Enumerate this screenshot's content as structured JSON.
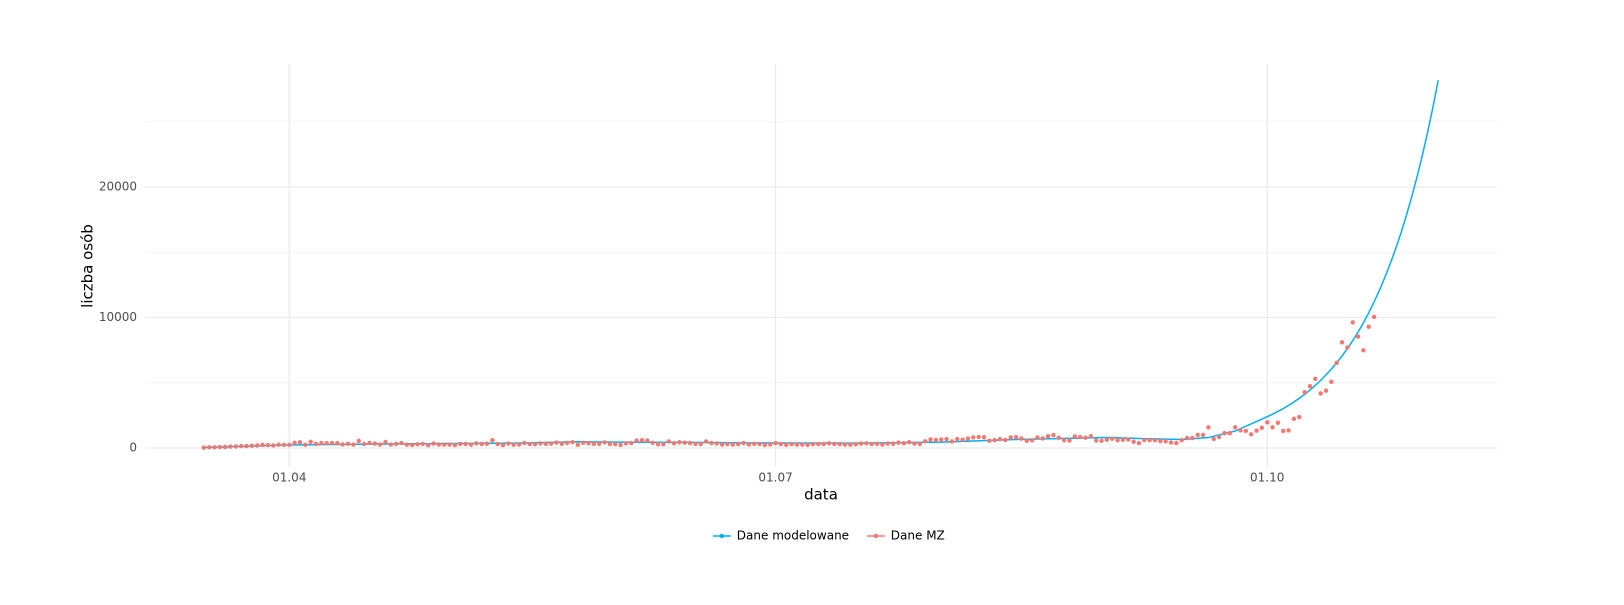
{
  "chart_data": {
    "type": "line",
    "x_label": "data",
    "y_label": "liczba osób",
    "xlim": [
      "05.03",
      "13.11"
    ],
    "xticks": [
      "01.04",
      "01.07",
      "01.10"
    ],
    "ylim": [
      -1456,
      29425
    ],
    "yticks": [
      0,
      10000,
      20000
    ],
    "yminor": [
      5000,
      15000,
      25000
    ],
    "grid": true,
    "legend": "bottom",
    "series": [
      {
        "name": "Dane modelowane",
        "color": "#00B0F6",
        "mode": "line",
        "x": [
          "16.03",
          "01.04",
          "15.04",
          "01.05",
          "15.05",
          "25.05",
          "01.06",
          "15.06",
          "01.07",
          "15.07",
          "01.08",
          "15.08",
          "01.09",
          "08.09",
          "15.09",
          "20.09",
          "25.09",
          "01.10",
          "02.10",
          "03.10",
          "04.10",
          "05.10",
          "06.10",
          "07.10",
          "08.10",
          "09.10",
          "10.10",
          "11.10",
          "12.10",
          "13.10",
          "14.10",
          "15.10",
          "16.10",
          "17.10",
          "18.10",
          "19.10",
          "20.10",
          "21.10",
          "22.10",
          "23.10",
          "24.10",
          "25.10",
          "26.10",
          "27.10",
          "28.10",
          "29.10",
          "30.10",
          "31.10",
          "01.11",
          "02.11"
        ],
        "values": [
          50,
          230,
          300,
          340,
          380,
          480,
          450,
          430,
          380,
          370,
          450,
          650,
          800,
          720,
          650,
          800,
          1300,
          2400,
          2590,
          2800,
          3020,
          3265,
          3525,
          3810,
          4110,
          4440,
          4800,
          5180,
          5600,
          6045,
          6530,
          7050,
          7615,
          8225,
          8880,
          9590,
          10360,
          11190,
          12085,
          13050,
          14100,
          15225,
          16440,
          17760,
          19180,
          20710,
          22370,
          24160,
          26090,
          28180
        ]
      },
      {
        "name": "Dane MZ",
        "color": "#F8766D",
        "mode": "points",
        "x": [
          "16.03",
          "17.03",
          "18.03",
          "19.03",
          "20.03",
          "21.03",
          "22.03",
          "23.03",
          "24.03",
          "25.03",
          "26.03",
          "27.03",
          "28.03",
          "29.03",
          "30.03",
          "31.03",
          "01.04",
          "02.04",
          "03.04",
          "04.04",
          "05.04",
          "06.04",
          "07.04",
          "08.04",
          "09.04",
          "10.04",
          "11.04",
          "12.04",
          "13.04",
          "14.04",
          "15.04",
          "16.04",
          "17.04",
          "18.04",
          "19.04",
          "20.04",
          "21.04",
          "22.04",
          "23.04",
          "24.04",
          "25.04",
          "26.04",
          "27.04",
          "28.04",
          "29.04",
          "30.04",
          "01.05",
          "02.05",
          "03.05",
          "04.05",
          "05.05",
          "06.05",
          "07.05",
          "08.05",
          "09.05",
          "10.05",
          "11.05",
          "12.05",
          "13.05",
          "14.05",
          "15.05",
          "16.05",
          "17.05",
          "18.05",
          "19.05",
          "20.05",
          "21.05",
          "22.05",
          "23.05",
          "24.05",
          "25.05",
          "26.05",
          "27.05",
          "28.05",
          "29.05",
          "30.05",
          "31.05",
          "01.06",
          "02.06",
          "03.06",
          "04.06",
          "05.06",
          "06.06",
          "07.06",
          "08.06",
          "09.06",
          "10.06",
          "11.06",
          "12.06",
          "13.06",
          "14.06",
          "15.06",
          "16.06",
          "17.06",
          "18.06",
          "19.06",
          "20.06",
          "21.06",
          "22.06",
          "23.06",
          "24.06",
          "25.06",
          "26.06",
          "27.06",
          "28.06",
          "29.06",
          "30.06",
          "01.07",
          "02.07",
          "03.07",
          "04.07",
          "05.07",
          "06.07",
          "07.07",
          "08.07",
          "09.07",
          "10.07",
          "11.07",
          "12.07",
          "13.07",
          "14.07",
          "15.07",
          "16.07",
          "17.07",
          "18.07",
          "19.07",
          "20.07",
          "21.07",
          "22.07",
          "23.07",
          "24.07",
          "25.07",
          "26.07",
          "27.07",
          "28.07",
          "29.07",
          "30.07",
          "31.07",
          "01.08",
          "02.08",
          "03.08",
          "04.08",
          "05.08",
          "06.08",
          "07.08",
          "08.08",
          "09.08",
          "10.08",
          "11.08",
          "12.08",
          "13.08",
          "14.08",
          "15.08",
          "16.08",
          "17.08",
          "18.08",
          "19.08",
          "20.08",
          "21.08",
          "22.08",
          "23.08",
          "24.08",
          "25.08",
          "26.08",
          "27.08",
          "28.08",
          "29.08",
          "30.08",
          "31.08",
          "01.09",
          "02.09",
          "03.09",
          "04.09",
          "05.09",
          "06.09",
          "07.09",
          "08.09",
          "09.09",
          "10.09",
          "11.09",
          "12.09",
          "13.09",
          "14.09",
          "15.09",
          "16.09",
          "17.09",
          "18.09",
          "19.09",
          "20.09",
          "21.09",
          "22.09",
          "23.09",
          "24.09",
          "25.09",
          "26.09",
          "27.09",
          "28.09",
          "29.09",
          "30.09",
          "01.10",
          "02.10",
          "03.10",
          "04.10",
          "05.10",
          "06.10",
          "07.10",
          "08.10",
          "09.10",
          "10.10",
          "11.10",
          "12.10",
          "13.10",
          "14.10",
          "15.10",
          "16.10",
          "17.10",
          "18.10",
          "19.10",
          "20.10",
          "21.10"
        ],
        "values": [
          27,
          52,
          49,
          71,
          76,
          111,
          115,
          150,
          152,
          170,
          195,
          235,
          224,
          193,
          256,
          243,
          244,
          392,
          437,
          244,
          475,
          311,
          374,
          370,
          380,
          371,
          268,
          318,
          260,
          545,
          306,
          380,
          336,
          263,
          461,
          263,
          314,
          381,
          252,
          230,
          285,
          312,
          215,
          337,
          262,
          262,
          262,
          223,
          312,
          307,
          252,
          356,
          307,
          330,
          595,
          300,
          226,
          338,
          253,
          271,
          380,
          299,
          280,
          350,
          318,
          332,
          413,
          325,
          395,
          443,
          244,
          397,
          367,
          322,
          322,
          423,
          300,
          292,
          230,
          361,
          376,
          575,
          599,
          575,
          400,
          282,
          282,
          506,
          364,
          440,
          407,
          375,
          314,
          301,
          506,
          378,
          350,
          265,
          303,
          260,
          300,
          375,
          276,
          319,
          303,
          234,
          271,
          371,
          300,
          243,
          299,
          262,
          265,
          239,
          290,
          299,
          301,
          360,
          312,
          299,
          263,
          258,
          293,
          337,
          358,
          298,
          318,
          263,
          340,
          325,
          418,
          357,
          443,
          337,
          306,
          512,
          657,
          615,
          658,
          680,
          502,
          680,
          640,
          726,
          809,
          843,
          832,
          548,
          599,
          680,
          619,
          811,
          832,
          727,
          548,
          587,
          812,
          733,
          903,
          991,
          779,
          595,
          566,
          887,
          834,
          789,
          900,
          581,
          550,
          635,
          716,
          600,
          632,
          658,
          487,
          376,
          610,
          597,
          599,
          535,
          513,
          421,
          378,
          600,
          760,
          758,
          1002,
          1002,
          1587,
          693,
          848,
          1136,
          1136,
          1587,
          1350,
          1306,
          1052,
          1326,
          1552,
          1967,
          1587,
          1934,
          1306,
          1349,
          2236,
          2367,
          4280,
          4739,
          5300,
          4178,
          4394,
          5068,
          6526,
          8099,
          7705,
          9622,
          8536,
          7482,
          9291,
          10040
        ]
      }
    ]
  }
}
